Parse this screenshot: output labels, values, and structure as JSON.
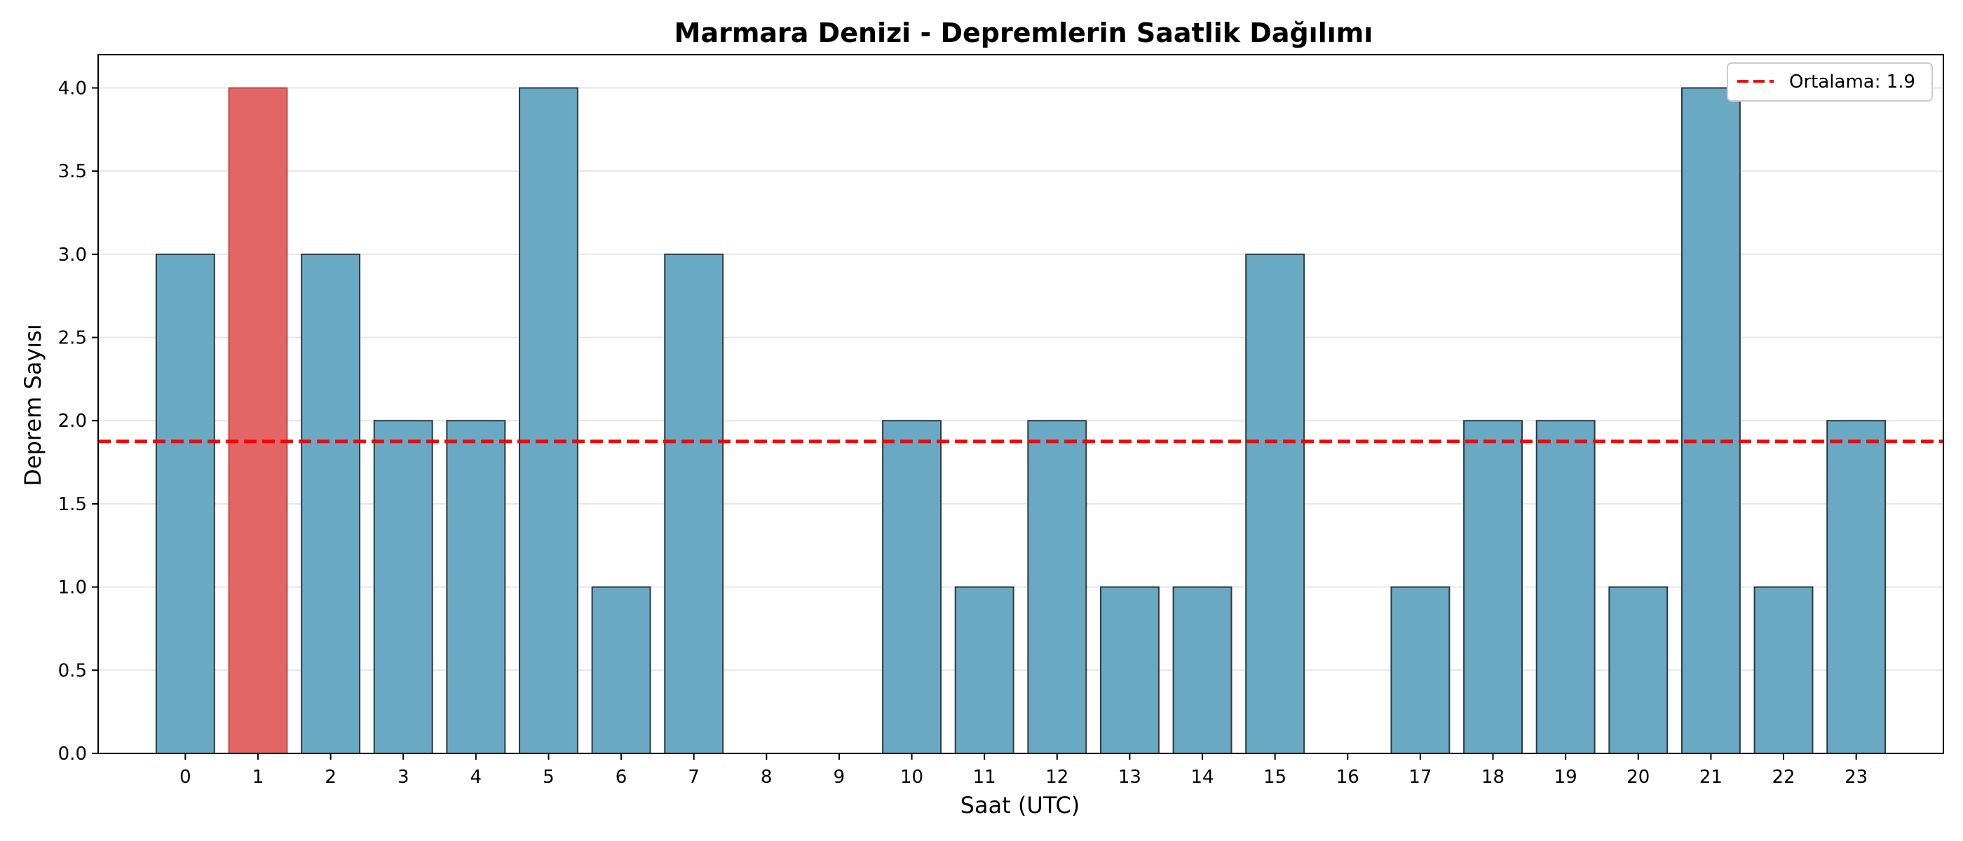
{
  "chart_data": {
    "type": "bar",
    "title": "Marmara Denizi - Depremlerin Saatlik Dağılımı",
    "xlabel": "Saat (UTC)",
    "ylabel": "Deprem Sayısı",
    "categories": [
      "0",
      "1",
      "2",
      "3",
      "4",
      "5",
      "6",
      "7",
      "8",
      "9",
      "10",
      "11",
      "12",
      "13",
      "14",
      "15",
      "16",
      "17",
      "18",
      "19",
      "20",
      "21",
      "22",
      "23"
    ],
    "values": [
      3,
      4,
      3,
      2,
      2,
      4,
      1,
      3,
      0,
      0,
      2,
      1,
      2,
      1,
      1,
      3,
      0,
      1,
      2,
      2,
      1,
      4,
      1,
      2
    ],
    "highlight_index": 1,
    "ylim": [
      0,
      4.2
    ],
    "yticks": [
      "0.0",
      "0.5",
      "1.0",
      "1.5",
      "2.0",
      "2.5",
      "3.0",
      "3.5",
      "4.0"
    ],
    "ytick_values": [
      0,
      0.5,
      1.0,
      1.5,
      2.0,
      2.5,
      3.0,
      3.5,
      4.0
    ],
    "mean_line": {
      "value": 1.875,
      "label": "Ortalama: 1.9"
    },
    "grid": "y",
    "legend_position": "top-right",
    "colors": {
      "bar": "#6aa9c4",
      "bar_highlight": "#e36666",
      "bar_edge": "#2b3a42",
      "mean_line": "#ff0000",
      "grid": "#e6e6e6"
    }
  }
}
